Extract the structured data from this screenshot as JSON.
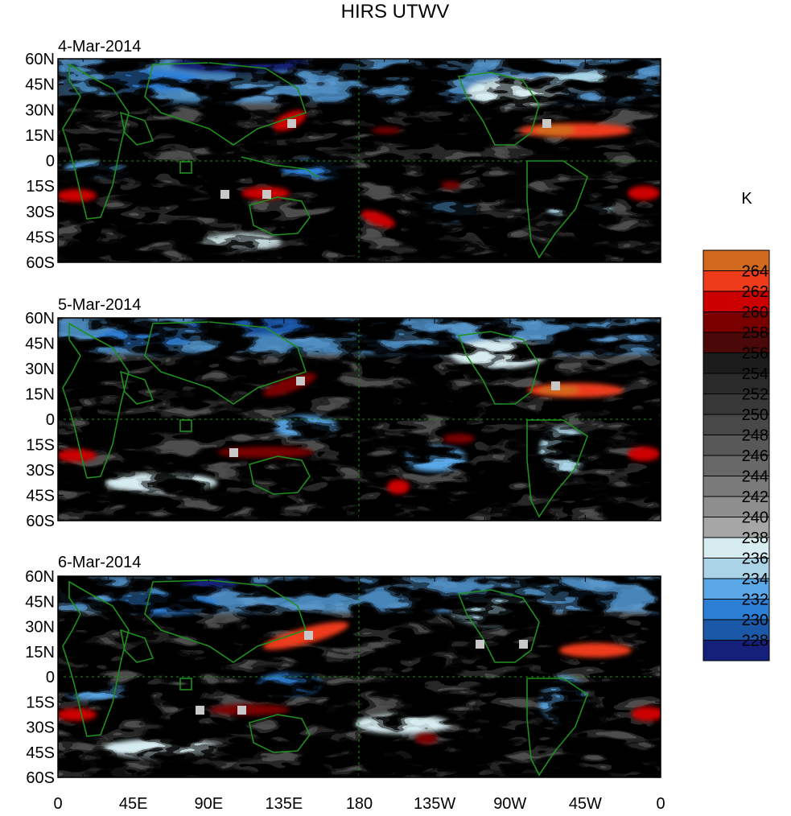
{
  "title": "HIRS UTWV",
  "panels": [
    {
      "date": "4-Mar-2014"
    },
    {
      "date": "5-Mar-2014"
    },
    {
      "date": "6-Mar-2014"
    }
  ],
  "lat_ticks": [
    "60N",
    "45N",
    "30N",
    "15N",
    "0",
    "15S",
    "30S",
    "45S",
    "60S"
  ],
  "lon_ticks": [
    "0",
    "45E",
    "90E",
    "135E",
    "180",
    "135W",
    "90W",
    "45W",
    "0"
  ],
  "colorbar": {
    "unit": "K",
    "labels": [
      "264",
      "262",
      "260",
      "258",
      "256",
      "254",
      "252",
      "250",
      "248",
      "246",
      "244",
      "242",
      "240",
      "238",
      "236",
      "234",
      "232",
      "230",
      "228"
    ],
    "colors": [
      "#d2691e",
      "#ee3b1a",
      "#cc0000",
      "#7a0000",
      "#4a0808",
      "#1c1c1c",
      "#2a2a2a",
      "#383838",
      "#484848",
      "#585858",
      "#686868",
      "#7a7a7a",
      "#8e8e8e",
      "#a6a6a6",
      "#d6ecf0",
      "#aad4e6",
      "#5aa8e8",
      "#2d7fd6",
      "#1c58a8",
      "#14207a"
    ]
  }
}
